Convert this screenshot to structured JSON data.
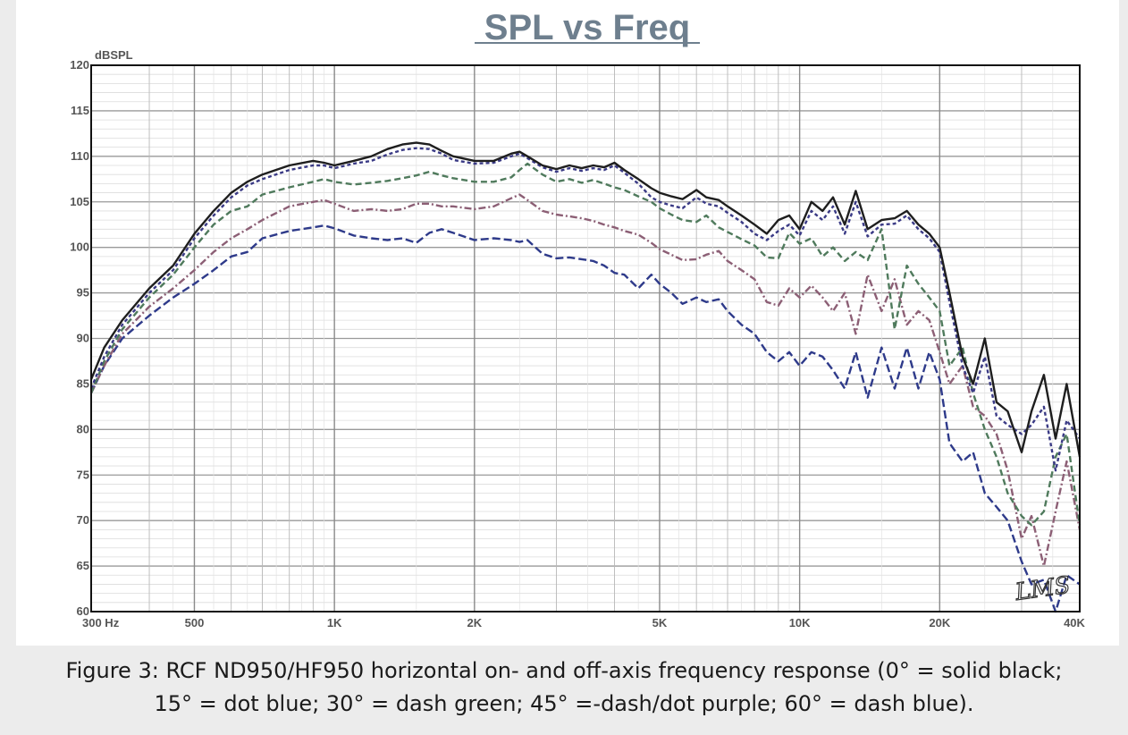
{
  "chart_data": {
    "type": "line",
    "title": "SPL vs Freq",
    "ylabel": "dBSPL",
    "xscale": "log",
    "xlim": [
      300,
      40000
    ],
    "ylim": [
      60,
      120
    ],
    "yticks": [
      60,
      65,
      70,
      75,
      80,
      85,
      90,
      95,
      100,
      105,
      110,
      115,
      120
    ],
    "xticks": [
      {
        "value": 300,
        "label": "300 Hz"
      },
      {
        "value": 500,
        "label": "500"
      },
      {
        "value": 1000,
        "label": "1K"
      },
      {
        "value": 2000,
        "label": "2K"
      },
      {
        "value": 5000,
        "label": "5K"
      },
      {
        "value": 10000,
        "label": "10K"
      },
      {
        "value": 20000,
        "label": "20K"
      },
      {
        "value": 40000,
        "label": "40K"
      }
    ],
    "grid": true,
    "x": [
      300,
      320,
      350,
      400,
      450,
      500,
      550,
      600,
      650,
      700,
      800,
      900,
      950,
      1000,
      1100,
      1200,
      1300,
      1400,
      1500,
      1600,
      1700,
      1800,
      2000,
      2200,
      2400,
      2500,
      2600,
      2800,
      3000,
      3200,
      3400,
      3600,
      3800,
      4000,
      4200,
      4500,
      4800,
      5000,
      5300,
      5600,
      6000,
      6300,
      6700,
      7000,
      7500,
      8000,
      8500,
      9000,
      9500,
      10000,
      10600,
      11200,
      11800,
      12500,
      13200,
      14000,
      15000,
      16000,
      17000,
      18000,
      19000,
      20000,
      21000,
      22400,
      23600,
      25000,
      26500,
      28000,
      30000,
      31500,
      33500,
      35500,
      37500,
      40000
    ],
    "series": [
      {
        "name": "0°",
        "color": "#1e1e1e",
        "dash": "",
        "values": [
          85.5,
          89,
          92,
          95.5,
          98,
          101.5,
          104,
          106,
          107.2,
          108,
          109,
          109.5,
          109.3,
          109,
          109.5,
          110,
          110.8,
          111.3,
          111.5,
          111.3,
          110.6,
          110,
          109.5,
          109.5,
          110.3,
          110.5,
          110,
          109,
          108.6,
          109,
          108.7,
          109,
          108.8,
          109.3,
          108.5,
          107.5,
          106.5,
          106,
          105.6,
          105.3,
          106.3,
          105.5,
          105.2,
          104.5,
          103.5,
          102.5,
          101.5,
          103,
          103.5,
          102,
          105,
          104,
          105.5,
          102.5,
          106.2,
          102,
          103,
          103.2,
          104,
          102.5,
          101.5,
          100,
          95,
          88,
          85,
          90,
          83,
          82,
          77.5,
          82,
          86,
          79,
          85,
          77
        ]
      },
      {
        "name": "15°",
        "color": "#3a3a85",
        "dash": "4 3",
        "values": [
          84.5,
          88,
          91.5,
          95,
          97.5,
          101,
          103.5,
          105.5,
          106.8,
          107.5,
          108.5,
          109,
          109,
          108.7,
          109.2,
          109.5,
          110.2,
          110.7,
          110.9,
          110.8,
          110.3,
          109.6,
          109.2,
          109.3,
          110,
          110.3,
          109.8,
          108.8,
          108.3,
          108.7,
          108.4,
          108.7,
          108.5,
          109,
          108.2,
          107,
          105.5,
          105,
          104.6,
          104.3,
          105.5,
          104.8,
          104.5,
          103.8,
          102.8,
          101.5,
          100.8,
          101.8,
          102.5,
          101.3,
          104,
          103,
          104.5,
          101.5,
          105,
          101.2,
          102.5,
          102.6,
          103.5,
          102,
          101,
          99.5,
          94,
          87,
          84,
          88,
          81.5,
          80.5,
          79.5,
          80.5,
          82.5,
          75.5,
          81,
          79
        ]
      },
      {
        "name": "30°",
        "color": "#4f7a5c",
        "dash": "7 4",
        "values": [
          84,
          87.5,
          91,
          94.5,
          97,
          100,
          102.5,
          104,
          104.5,
          105.8,
          106.6,
          107.2,
          107.5,
          107.2,
          106.9,
          107.1,
          107.3,
          107.6,
          107.9,
          108.3,
          107.9,
          107.6,
          107.2,
          107.2,
          107.7,
          108.5,
          109.2,
          108,
          107.2,
          107.5,
          107.1,
          107.4,
          107,
          106.6,
          106.3,
          105.6,
          105,
          104.3,
          103.6,
          103,
          102.8,
          103.5,
          102.2,
          101.7,
          100.9,
          100.2,
          98.9,
          98.8,
          101.6,
          100.4,
          101,
          99,
          100,
          98.5,
          99.5,
          98.6,
          102,
          91,
          98,
          96,
          94.5,
          93,
          87,
          89,
          84,
          80,
          77,
          73,
          70.5,
          69.5,
          71,
          77,
          79.5,
          69.5
        ]
      },
      {
        "name": "45°",
        "color": "#8c5f75",
        "dash": "8 3 2 3",
        "values": [
          84,
          87,
          90.5,
          93.5,
          95.5,
          97.5,
          99.5,
          101,
          102,
          103,
          104.5,
          105,
          105.2,
          104.8,
          104,
          104.2,
          104,
          104.2,
          104.8,
          104.8,
          104.5,
          104.5,
          104.2,
          104.5,
          105.4,
          105.8,
          105.2,
          104,
          103.6,
          103.4,
          103.2,
          102.9,
          102.5,
          102.2,
          101.8,
          101.4,
          100.5,
          99.8,
          99.2,
          98.6,
          98.7,
          99.2,
          99.6,
          98.5,
          97.5,
          96.5,
          94,
          93.6,
          95.5,
          94.5,
          95.8,
          94.5,
          93,
          95,
          90.5,
          97,
          93,
          96.5,
          91.5,
          93,
          92,
          88.5,
          85,
          87,
          82.5,
          81.5,
          79.5,
          75.5,
          68,
          70.5,
          65,
          71,
          76.5,
          69
        ]
      },
      {
        "name": "60°",
        "color": "#2e3a8a",
        "dash": "9 4",
        "values": [
          84,
          87,
          90,
          92.5,
          94.5,
          96,
          97.5,
          99,
          99.5,
          101,
          101.8,
          102.2,
          102.4,
          102.1,
          101.3,
          101,
          100.8,
          101,
          100.5,
          101.6,
          102,
          101.6,
          100.8,
          101,
          100.8,
          100.6,
          100.8,
          99.3,
          98.8,
          98.9,
          98.7,
          98.5,
          98,
          97.2,
          97,
          95.5,
          97,
          96,
          95,
          93.8,
          94.5,
          94,
          94.3,
          93,
          91.5,
          90.5,
          88.5,
          87.5,
          88.5,
          87,
          88.5,
          88,
          86.5,
          84.5,
          88.5,
          83.5,
          89,
          84.5,
          89,
          84.5,
          88.5,
          85.5,
          78.5,
          76.5,
          77.5,
          73,
          71.5,
          70,
          65.5,
          63,
          63.5,
          60,
          64,
          63
        ]
      }
    ]
  },
  "brand": "LMS",
  "caption": {
    "line1": "Figure 3: RCF ND950/HF950 horizontal on- and off-axis frequency response (0° = solid black;",
    "line2": "15° = dot blue; 30° = dash green; 45° =-dash/dot purple; 60° = dash blue)."
  }
}
